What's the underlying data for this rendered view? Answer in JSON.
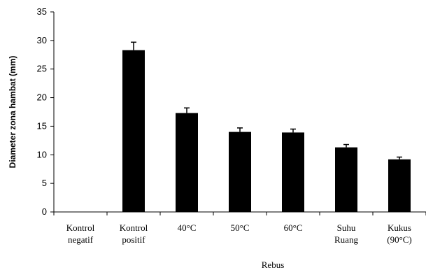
{
  "chart_data": {
    "type": "bar",
    "categories": [
      [
        "Kontrol",
        "negatif"
      ],
      [
        "Kontrol",
        "positif"
      ],
      [
        "40°C"
      ],
      [
        "50°C"
      ],
      [
        "60°C"
      ],
      [
        "Suhu",
        "Ruang"
      ],
      [
        "Kukus",
        "(90°C)"
      ]
    ],
    "values": [
      0,
      28.3,
      17.3,
      14.0,
      13.9,
      11.3,
      9.2
    ],
    "errors": [
      0,
      1.4,
      0.9,
      0.7,
      0.6,
      0.5,
      0.4
    ],
    "ylabel": "Diameter zona hambat (mm)",
    "xlabel": "Rebus",
    "ylim": [
      0,
      35
    ],
    "yticks": [
      0,
      5,
      10,
      15,
      20,
      25,
      30,
      35
    ],
    "bar_color": "#000000",
    "grid": false,
    "legend": "none"
  }
}
